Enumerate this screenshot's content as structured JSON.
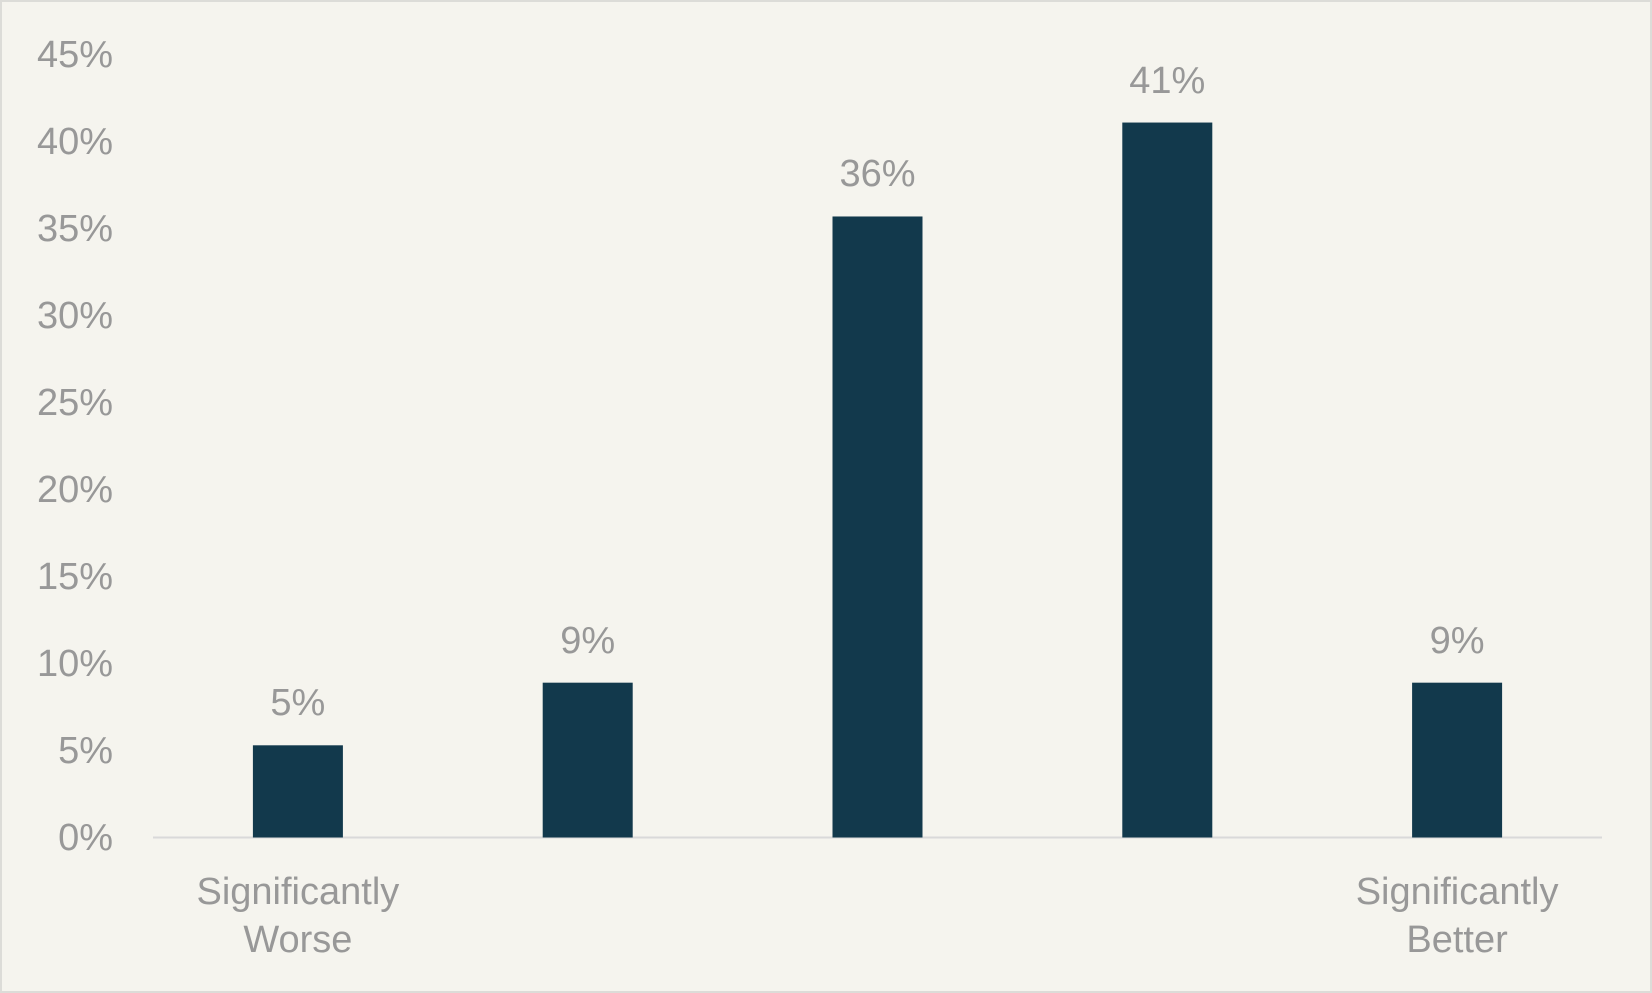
{
  "chart_data": {
    "type": "bar",
    "categories": [
      "Significantly Worse",
      null,
      null,
      null,
      "Significantly Better"
    ],
    "values": [
      5.3,
      8.9,
      35.7,
      41.1,
      8.9
    ],
    "value_labels": [
      "5%",
      "9%",
      "36%",
      "41%",
      "9%"
    ],
    "color": "#12394c",
    "ylim": [
      0,
      45
    ],
    "yticks": [
      {
        "value": 0,
        "label": "0%"
      },
      {
        "value": 5,
        "label": "5%"
      },
      {
        "value": 10,
        "label": "10%"
      },
      {
        "value": 15,
        "label": "15%"
      },
      {
        "value": 20,
        "label": "20%"
      },
      {
        "value": 25,
        "label": "25%"
      },
      {
        "value": 30,
        "label": "30%"
      },
      {
        "value": 35,
        "label": "35%"
      },
      {
        "value": 40,
        "label": "40%"
      },
      {
        "value": 45,
        "label": "45%"
      }
    ],
    "grid": false
  }
}
